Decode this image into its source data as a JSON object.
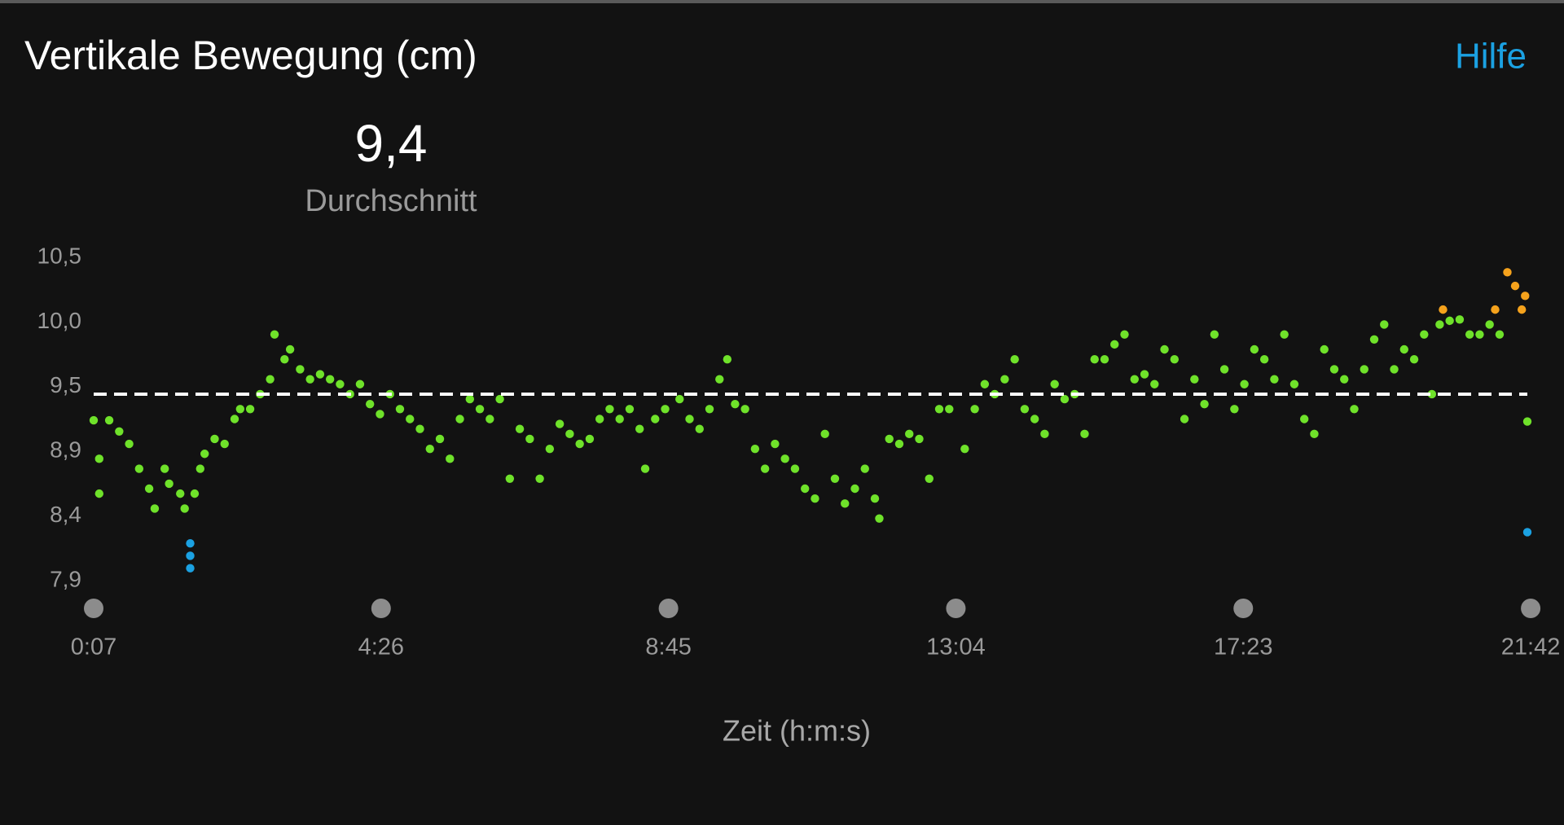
{
  "header": {
    "title": "Vertikale Bewegung (cm)",
    "help": "Hilfe"
  },
  "chart_data": {
    "type": "scatter",
    "average": {
      "value": 9.4,
      "label": "9,4"
    },
    "average_caption": "Durchschnitt",
    "x_label": "Zeit (h:m:s)",
    "xlim": [
      7,
      1299
    ],
    "xticks": [
      {
        "value": 7,
        "label": "0:07"
      },
      {
        "value": 266,
        "label": "4:26"
      },
      {
        "value": 525,
        "label": "8:45"
      },
      {
        "value": 784,
        "label": "13:04"
      },
      {
        "value": 1043,
        "label": "17:23"
      },
      {
        "value": 1302,
        "label": "21:42"
      }
    ],
    "ylim": [
      7.9,
      10.5
    ],
    "yticks": [
      {
        "value": 7.9,
        "label": "7,9"
      },
      {
        "value": 8.42,
        "label": "8,4"
      },
      {
        "value": 8.94,
        "label": "8,9"
      },
      {
        "value": 9.46,
        "label": "9,5"
      },
      {
        "value": 9.98,
        "label": "10,0"
      },
      {
        "value": 10.5,
        "label": "10,5"
      }
    ],
    "series": [
      {
        "color": "#6fe22a",
        "x": [
          7,
          12,
          12,
          21,
          30,
          39,
          48,
          57,
          62,
          71,
          75,
          85,
          89,
          98,
          103,
          107,
          116,
          125,
          134,
          139,
          148,
          157,
          166,
          170,
          179,
          184,
          193,
          202,
          211,
          220,
          229,
          238,
          247,
          256,
          265,
          274,
          283,
          292,
          301,
          310,
          319,
          328,
          337,
          346,
          355,
          364,
          373,
          382,
          391,
          400,
          409,
          418,
          427,
          436,
          445,
          454,
          463,
          472,
          481,
          490,
          499,
          504,
          513,
          522,
          535,
          544,
          553,
          562,
          571,
          578,
          585,
          594,
          603,
          612,
          621,
          630,
          639,
          648,
          657,
          666,
          675,
          684,
          693,
          702,
          711,
          715,
          724,
          733,
          742,
          751,
          760,
          769,
          778,
          792,
          801,
          810,
          819,
          828,
          837,
          846,
          855,
          864,
          873,
          882,
          891,
          900,
          909,
          918,
          927,
          936,
          945,
          954,
          963,
          972,
          981,
          990,
          999,
          1008,
          1017,
          1026,
          1035,
          1044,
          1053,
          1062,
          1071,
          1080,
          1089,
          1098,
          1107,
          1116,
          1125,
          1134,
          1143,
          1152,
          1161,
          1170,
          1179,
          1188,
          1197,
          1206,
          1213,
          1220,
          1229,
          1238,
          1247,
          1256,
          1265,
          1274,
          1299
        ],
        "values": [
          9.19,
          8.88,
          8.6,
          9.19,
          9.1,
          9.0,
          8.8,
          8.64,
          8.48,
          8.8,
          8.68,
          8.6,
          8.48,
          8.6,
          8.8,
          8.92,
          9.04,
          9.0,
          9.2,
          9.28,
          9.28,
          9.4,
          9.52,
          9.88,
          9.68,
          9.76,
          9.6,
          9.52,
          9.56,
          9.52,
          9.48,
          9.4,
          9.48,
          9.32,
          9.24,
          9.4,
          9.28,
          9.2,
          9.12,
          8.96,
          9.04,
          8.88,
          9.2,
          9.36,
          9.28,
          9.2,
          9.36,
          8.72,
          9.12,
          9.04,
          8.72,
          8.96,
          9.16,
          9.08,
          9.0,
          9.04,
          9.2,
          9.28,
          9.2,
          9.28,
          9.12,
          8.8,
          9.2,
          9.28,
          9.36,
          9.2,
          9.12,
          9.28,
          9.52,
          9.68,
          9.32,
          9.28,
          8.96,
          8.8,
          9.0,
          8.88,
          8.8,
          8.64,
          8.56,
          9.08,
          8.72,
          8.52,
          8.64,
          8.8,
          8.56,
          8.4,
          9.04,
          9.0,
          9.08,
          9.04,
          8.72,
          9.28,
          9.28,
          8.96,
          9.28,
          9.48,
          9.4,
          9.52,
          9.68,
          9.28,
          9.2,
          9.08,
          9.48,
          9.36,
          9.4,
          9.08,
          9.68,
          9.68,
          9.8,
          9.88,
          9.52,
          9.56,
          9.48,
          9.76,
          9.68,
          9.2,
          9.52,
          9.32,
          9.88,
          9.6,
          9.28,
          9.48,
          9.76,
          9.68,
          9.52,
          9.88,
          9.48,
          9.2,
          9.08,
          9.76,
          9.6,
          9.52,
          9.28,
          9.6,
          9.84,
          9.96,
          9.6,
          9.76,
          9.68,
          9.88,
          9.4,
          9.96,
          9.99,
          10.0,
          9.88,
          9.88,
          9.96,
          9.88,
          9.18
        ]
      },
      {
        "color": "#1ba1e2",
        "x": [
          94,
          94,
          94,
          1299
        ],
        "values": [
          8.2,
          8.1,
          8.0,
          8.29
        ]
      },
      {
        "color": "#f5a21c",
        "x": [
          1223,
          1270,
          1281,
          1288,
          1294,
          1297
        ],
        "values": [
          10.08,
          10.08,
          10.38,
          10.27,
          10.08,
          10.19
        ]
      }
    ]
  }
}
